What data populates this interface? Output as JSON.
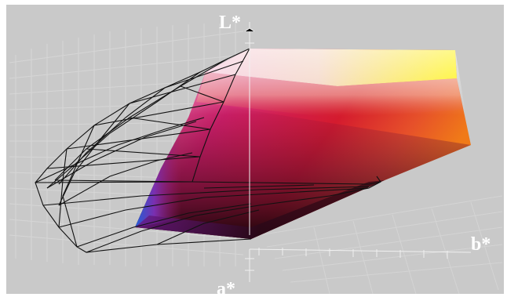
{
  "figure": {
    "axes": {
      "l_label": "L*",
      "b_label": "b*",
      "a_label": "a*"
    },
    "colors": {
      "background": "#c9c9c9",
      "frame": "#ffffff",
      "grid": "#d8d8d8",
      "wireframe": "#111111",
      "solid_top_left": "#f2b6d0",
      "solid_top_right": "#fff200",
      "solid_mid": "#c4123a",
      "solid_right": "#e8501a",
      "solid_bottom": "#1a0a10",
      "solid_left_edge": "#2a6ad8"
    }
  }
}
